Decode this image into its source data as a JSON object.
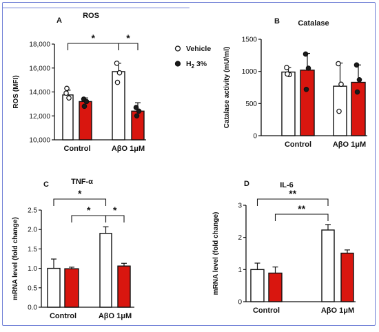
{
  "chart_data": [
    {
      "panel": "A",
      "title": "ROS",
      "type": "bar",
      "categories": [
        "Control",
        "AβO 1μM"
      ],
      "ylabel": "ROS (MFI)",
      "ylim": [
        10000,
        18000
      ],
      "yticks": [
        10000,
        12000,
        14000,
        16000,
        18000
      ],
      "ytick_labels": [
        "10,000",
        "12,000",
        "14,000",
        "16,000",
        "18,000"
      ],
      "legend": [
        "Vehicle",
        "H2 3%"
      ],
      "series": [
        {
          "name": "Vehicle",
          "values": [
            13750,
            15700
          ],
          "errors": [
            400,
            700
          ],
          "points": [
            [
              13900,
              13500,
              14300
            ],
            [
              16400,
              15600,
              14800
            ]
          ]
        },
        {
          "name": "H2 3%",
          "values": [
            13200,
            12400
          ],
          "errors": [
            300,
            700
          ],
          "points": [
            [
              13400,
              13200,
              12800
            ],
            [
              12700,
              12400,
              12000
            ]
          ]
        }
      ],
      "significance": [
        {
          "from": [
            0,
            0
          ],
          "to": [
            1,
            0
          ],
          "label": "*"
        },
        {
          "from": [
            1,
            0
          ],
          "to": [
            1,
            1
          ],
          "label": "*"
        }
      ]
    },
    {
      "panel": "B",
      "title": "Catalase",
      "type": "bar",
      "categories": [
        "Control",
        "AβO 1μM"
      ],
      "ylabel": "Catalase activity (mU/ml)",
      "ylim": [
        0,
        1500
      ],
      "yticks": [
        0,
        500,
        1000,
        1500
      ],
      "ytick_labels": [
        "0",
        "500",
        "1000",
        "1500"
      ],
      "series": [
        {
          "name": "Vehicle",
          "values": [
            990,
            770
          ],
          "errors": [
            70,
            360
          ],
          "points": [
            [
              1060,
              950,
              960
            ],
            [
              1120,
              800,
              380
            ]
          ]
        },
        {
          "name": "H2 3%",
          "values": [
            1020,
            830
          ],
          "errors": [
            260,
            270
          ],
          "points": [
            [
              1270,
              1050,
              720
            ],
            [
              1100,
              870,
              680
            ]
          ]
        }
      ],
      "significance": []
    },
    {
      "panel": "C",
      "title": "TNF-α",
      "type": "bar",
      "categories": [
        "Control",
        "AβO 1μM"
      ],
      "ylabel": "mRNA level (fold change)",
      "ylim": [
        0,
        2.5
      ],
      "yticks": [
        0,
        0.5,
        1.0,
        1.5,
        2.0,
        2.5
      ],
      "ytick_labels": [
        "0.0",
        "0.5",
        "1.0",
        "1.5",
        "2.0",
        "2.5"
      ],
      "series": [
        {
          "name": "Vehicle",
          "values": [
            1.0,
            1.9
          ],
          "errors": [
            0.24,
            0.17
          ]
        },
        {
          "name": "H2 3%",
          "values": [
            0.99,
            1.06
          ],
          "errors": [
            0.04,
            0.07
          ]
        }
      ],
      "significance": [
        {
          "from": [
            0,
            0
          ],
          "to": [
            1,
            0
          ],
          "label": "*"
        },
        {
          "from": [
            0,
            1
          ],
          "to": [
            1,
            0
          ],
          "label": "*"
        },
        {
          "from": [
            1,
            0
          ],
          "to": [
            1,
            1
          ],
          "label": "*"
        }
      ]
    },
    {
      "panel": "D",
      "title": "IL-6",
      "type": "bar",
      "categories": [
        "Control",
        "AβO 1μM"
      ],
      "ylabel": "mRNA level (fold change)",
      "ylim": [
        0,
        3
      ],
      "yticks": [
        0,
        1,
        2,
        3
      ],
      "ytick_labels": [
        "0",
        "1",
        "2",
        "3"
      ],
      "series": [
        {
          "name": "Vehicle",
          "values": [
            1.0,
            2.23
          ],
          "errors": [
            0.2,
            0.17
          ]
        },
        {
          "name": "H2 3%",
          "values": [
            0.89,
            1.51
          ],
          "errors": [
            0.19,
            0.1
          ]
        }
      ],
      "significance": [
        {
          "from": [
            0,
            0
          ],
          "to": [
            1,
            0
          ],
          "label": "**"
        },
        {
          "from": [
            0,
            1
          ],
          "to": [
            1,
            0
          ],
          "label": "**"
        }
      ]
    }
  ],
  "colors": {
    "vehicle_fill": "#ffffff",
    "treatment_fill": "#d9160f",
    "frame": "#6f7fd6",
    "ink": "#111111"
  }
}
